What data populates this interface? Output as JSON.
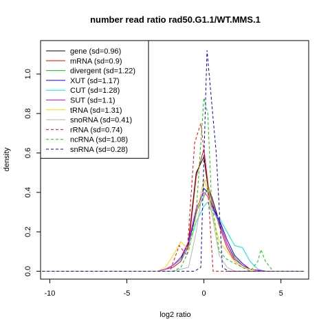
{
  "chart_data": {
    "type": "line",
    "title": "number read ratio rad50.G1.1/WT.MMS.1",
    "xlabel": "log2 ratio",
    "ylabel": "density",
    "xlim": [
      -10.6,
      6.8
    ],
    "ylim": [
      -0.04,
      1.17
    ],
    "xticks": [
      -10,
      -5,
      0,
      5
    ],
    "xtick_labels": [
      "-10",
      "-5",
      "0",
      "5"
    ],
    "yticks": [
      0.0,
      0.2,
      0.4,
      0.6,
      0.8,
      1.0
    ],
    "ytick_labels": [
      "0.0",
      "0.2",
      "0.4",
      "0.6",
      "0.8",
      "1.0"
    ],
    "grid": false,
    "legend_position": "top-left",
    "series": [
      {
        "name": "gene (sd=0.96)",
        "color": "#000000",
        "dash": "solid",
        "x": [
          -10.5,
          -3,
          -2.5,
          -2,
          -1.5,
          -1,
          -0.5,
          0,
          0.25,
          0.5,
          1,
          1.5,
          2,
          2.5,
          3,
          3.5,
          4,
          5,
          6.5
        ],
        "y": [
          0,
          0,
          0.01,
          0.03,
          0.06,
          0.15,
          0.5,
          0.58,
          0.43,
          0.38,
          0.25,
          0.14,
          0.06,
          0.03,
          0.01,
          0.005,
          0,
          0,
          0
        ]
      },
      {
        "name": "mRNA (sd=0.9)",
        "color": "#ff0000",
        "dash": "solid",
        "x": [
          -10.5,
          -3,
          -2.5,
          -2,
          -1.5,
          -1,
          -0.5,
          0,
          0.25,
          0.5,
          1,
          1.5,
          2,
          2.5,
          3,
          3.5,
          4,
          5,
          6.5
        ],
        "y": [
          0,
          0,
          0.01,
          0.02,
          0.05,
          0.13,
          0.48,
          0.62,
          0.45,
          0.36,
          0.23,
          0.12,
          0.05,
          0.02,
          0.01,
          0.005,
          0,
          0,
          0
        ]
      },
      {
        "name": "divergent (sd=1.22)",
        "color": "#00cc00",
        "dash": "solid",
        "x": [
          -10.5,
          -3,
          -2.5,
          -2,
          -1.5,
          -1,
          -0.5,
          0,
          0.25,
          0.5,
          1,
          1.5,
          2,
          2.5,
          3,
          3.5,
          4,
          5,
          6.5
        ],
        "y": [
          0,
          0,
          0.01,
          0.03,
          0.07,
          0.14,
          0.3,
          0.38,
          0.42,
          0.33,
          0.24,
          0.14,
          0.07,
          0.03,
          0.01,
          0.005,
          0,
          0,
          0
        ]
      },
      {
        "name": "XUT (sd=1.17)",
        "color": "#0000ff",
        "dash": "solid",
        "x": [
          -10.5,
          -3,
          -2.5,
          -2,
          -1.5,
          -1,
          -0.5,
          0,
          0.25,
          0.5,
          1,
          1.5,
          2,
          2.5,
          3,
          3.5,
          4,
          5,
          6.5
        ],
        "y": [
          0,
          0,
          0.01,
          0.03,
          0.07,
          0.14,
          0.3,
          0.42,
          0.4,
          0.34,
          0.26,
          0.16,
          0.08,
          0.04,
          0.01,
          0.005,
          0,
          0,
          0
        ]
      },
      {
        "name": "CUT (sd=1.28)",
        "color": "#00e5e5",
        "dash": "solid",
        "x": [
          -10.5,
          -3,
          -2.5,
          -2,
          -1.5,
          -1,
          -0.5,
          0,
          0.25,
          0.5,
          1,
          1.5,
          2,
          2.5,
          3,
          3.5,
          4,
          5,
          6.5
        ],
        "y": [
          0,
          0,
          0.01,
          0.03,
          0.06,
          0.12,
          0.25,
          0.33,
          0.35,
          0.3,
          0.27,
          0.2,
          0.13,
          0.12,
          0.05,
          0.01,
          0,
          0,
          0
        ]
      },
      {
        "name": "SUT (sd=1.1)",
        "color": "#ff00ff",
        "dash": "solid",
        "x": [
          -10.5,
          -3,
          -2.5,
          -2,
          -1.5,
          -1,
          -0.5,
          0,
          0.25,
          0.5,
          1,
          1.5,
          2,
          2.5,
          3,
          3.5,
          4,
          5,
          6.5
        ],
        "y": [
          0,
          0,
          0.01,
          0.03,
          0.07,
          0.15,
          0.32,
          0.4,
          0.38,
          0.33,
          0.25,
          0.14,
          0.06,
          0.03,
          0.01,
          0.005,
          0,
          0,
          0
        ]
      },
      {
        "name": "tRNA (sd=1.31)",
        "color": "#ffd700",
        "dash": "solid",
        "x": [
          -10.5,
          -3,
          -2.5,
          -2,
          -1.5,
          -1,
          -0.5,
          0,
          0.25,
          0.5,
          1,
          1.5,
          2,
          2.5,
          3,
          3.5,
          4,
          5,
          6.5
        ],
        "y": [
          0,
          0,
          0.02,
          0.08,
          0.15,
          0.11,
          0.28,
          0.47,
          0.4,
          0.3,
          0.15,
          0.1,
          0.05,
          0.02,
          0.01,
          0,
          0,
          0,
          0
        ]
      },
      {
        "name": "snoRNA (sd=0.41)",
        "color": "#b3b3b3",
        "dash": "solid",
        "x": [
          -10.5,
          -2,
          -1,
          -0.5,
          0,
          0.25,
          0.5,
          1,
          1.5,
          2,
          3,
          6.5
        ],
        "y": [
          0,
          0,
          0.02,
          0.2,
          0.45,
          0.47,
          0.3,
          0.08,
          0.02,
          0,
          0,
          0
        ]
      },
      {
        "name": "rRNA (sd=0.74)",
        "color": "#ff0000",
        "dash": "dashed",
        "x": [
          -10.5,
          -2.2,
          -1.6,
          -1.1,
          -0.6,
          -0.2,
          0.2,
          0.6,
          1.1,
          1.6,
          6.5
        ],
        "y": [
          0,
          0,
          0.13,
          0.08,
          0.65,
          0.75,
          0.48,
          0,
          0,
          0,
          0
        ]
      },
      {
        "name": "ncRNA (sd=1.08)",
        "color": "#00cc00",
        "dash": "dashed",
        "x": [
          -10.5,
          -2.5,
          -2,
          -1.5,
          -1,
          -0.5,
          0,
          0.25,
          0.5,
          1,
          1.5,
          2,
          2.5,
          3,
          3.5,
          3.7,
          4,
          4.5,
          6.5
        ],
        "y": [
          0,
          0,
          0,
          0.02,
          0.1,
          0.3,
          0.88,
          0.8,
          0.35,
          0.1,
          0.06,
          0.04,
          0.02,
          0,
          0.05,
          0.11,
          0.05,
          0,
          0
        ]
      },
      {
        "name": "snRNA (sd=0.28)",
        "color": "#0000cc",
        "dash": "dashed",
        "x": [
          -10.5,
          -0.6,
          -0.2,
          0.2,
          0.8,
          1.2,
          1.6,
          6.5
        ],
        "y": [
          0,
          0,
          0.02,
          1.12,
          0.6,
          0.02,
          0,
          0
        ]
      }
    ]
  }
}
